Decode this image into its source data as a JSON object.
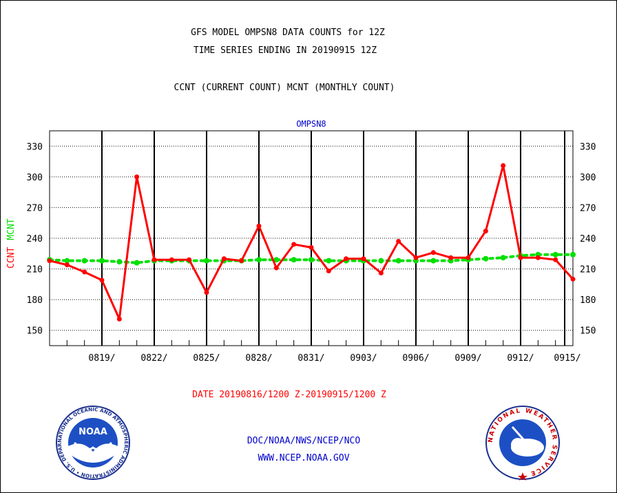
{
  "header": {
    "line1": "GFS MODEL OMPSN8 DATA COUNTS for 12Z",
    "line2": "TIME SERIES ENDING IN 20190915 12Z",
    "line3": "CCNT (CURRENT COUNT) MCNT (MONTHLY COUNT)"
  },
  "footer": {
    "date_range": "DATE 20190816/1200 Z-20190915/1200 Z",
    "org": "DOC/NOAA/NWS/NCEP/NCO",
    "url": "WWW.NCEP.NOAA.GOV"
  },
  "logos": {
    "noaa_text": "NOAA",
    "noaa_ring": "NATIONAL OCEANIC AND ATMOSPHERIC ADMINISTRATION • U.S. DEPARTMENT OF COMMERCE •",
    "nws_ring": "NATIONAL WEATHER SERVICE"
  },
  "colors": {
    "ccnt": "#ff0000",
    "mcnt": "#00e000",
    "title_blue": "#0000cc",
    "footer_red": "#ff0000",
    "grid": "#000000"
  },
  "chart_data": {
    "type": "line",
    "title": "OMPSN8",
    "ylabel_series": [
      "CCNT",
      "MCNT"
    ],
    "ylim": [
      135,
      345
    ],
    "yticks": [
      150,
      180,
      210,
      240,
      270,
      300,
      330
    ],
    "x_start": "0816",
    "x_end": "0915",
    "xticks": [
      "0819/",
      "0822/",
      "0825/",
      "0828/",
      "0831/",
      "0903/",
      "0906/",
      "0909/",
      "0912/",
      "0915/"
    ],
    "grid": true,
    "series": [
      {
        "name": "CCNT",
        "values": [
          218,
          214,
          207,
          199,
          161,
          300,
          219,
          219,
          219,
          187,
          220,
          218,
          252,
          211,
          234,
          231,
          208,
          220,
          220,
          206,
          237,
          221,
          226,
          221,
          221,
          247,
          311,
          221,
          221,
          219,
          200
        ]
      },
      {
        "name": "MCNT",
        "values": [
          219,
          218,
          218,
          218,
          217,
          216,
          218,
          218,
          218,
          218,
          218,
          218,
          219,
          219,
          219,
          219,
          218,
          218,
          218,
          218,
          218,
          218,
          218,
          218,
          219,
          220,
          221,
          223,
          224,
          224,
          224
        ]
      }
    ]
  }
}
